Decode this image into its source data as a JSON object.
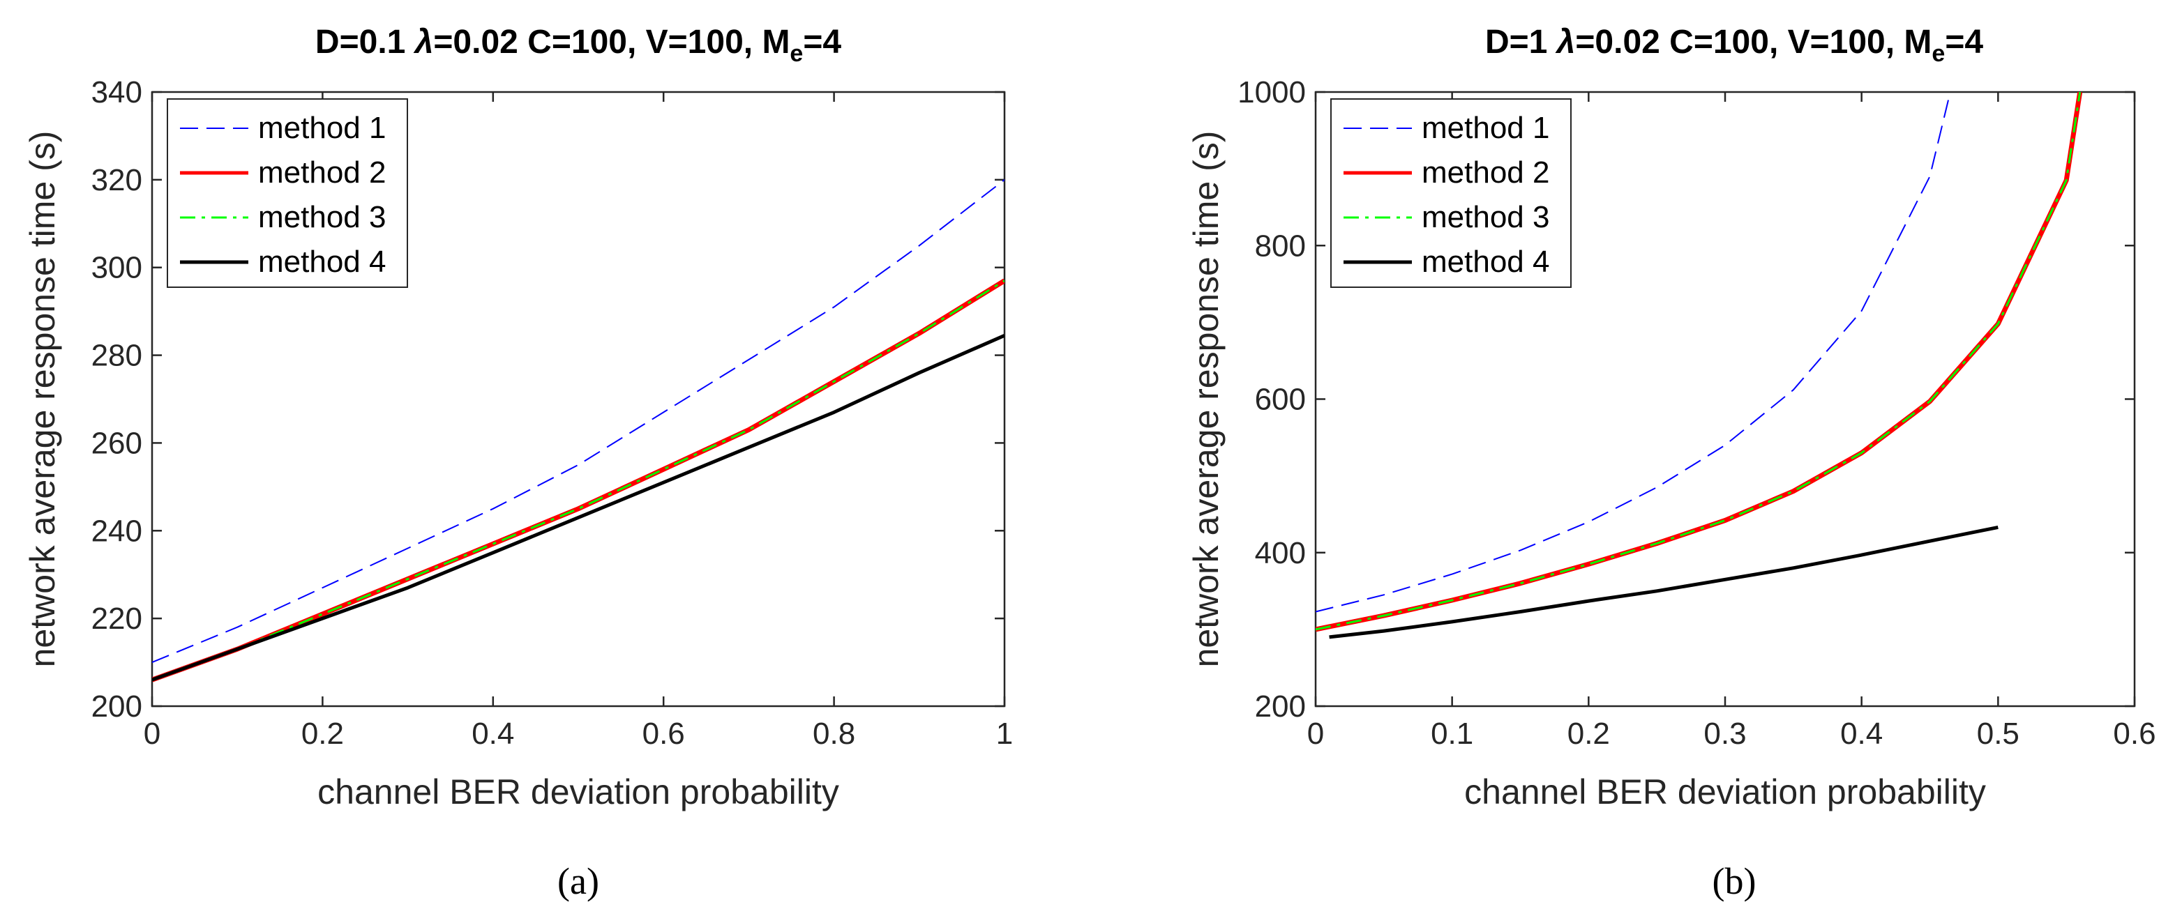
{
  "chart_data": [
    {
      "type": "line",
      "panel_label": "(a)",
      "title": {
        "p1": "D=0.1 ",
        "lambda": "λ",
        "p2": "=0.02 C=100, V=100, M",
        "sub": "e",
        "p3": "=4"
      },
      "xlabel": "channel BER deviation probability",
      "ylabel": "network average response time (s)",
      "xlim": [
        0,
        1
      ],
      "ylim": [
        200,
        340
      ],
      "xticks": [
        0,
        0.2,
        0.4,
        0.6,
        0.8,
        1
      ],
      "xtick_labels": [
        "0",
        "0.2",
        "0.4",
        "0.6",
        "0.8",
        "1"
      ],
      "yticks": [
        200,
        220,
        240,
        260,
        280,
        300,
        320,
        340
      ],
      "ytick_labels": [
        "200",
        "220",
        "240",
        "260",
        "280",
        "300",
        "320",
        "340"
      ],
      "legend": [
        "method 1",
        "method 2",
        "method 3",
        "method 4"
      ],
      "legend_position": "top-left",
      "series": [
        {
          "name": "method 1",
          "color": "#0000ff",
          "style": "dashed",
          "x": [
            0,
            0.1,
            0.2,
            0.3,
            0.4,
            0.5,
            0.6,
            0.7,
            0.8,
            0.9,
            1
          ],
          "y": [
            210,
            218,
            227,
            236,
            245,
            255,
            267,
            279,
            291,
            305,
            320
          ]
        },
        {
          "name": "method 2",
          "color": "#ff0000",
          "style": "solid",
          "x": [
            0,
            0.1,
            0.2,
            0.3,
            0.4,
            0.5,
            0.6,
            0.7,
            0.8,
            0.9,
            1
          ],
          "y": [
            206,
            213,
            221,
            229,
            237,
            245,
            254,
            263,
            274,
            285,
            297
          ]
        },
        {
          "name": "method 3",
          "color": "#00ff00",
          "style": "dashdot",
          "x": [
            0,
            0.1,
            0.2,
            0.3,
            0.4,
            0.5,
            0.6,
            0.7,
            0.8,
            0.9,
            1
          ],
          "y": [
            206,
            213,
            221,
            229,
            237,
            245,
            254,
            263,
            274,
            285,
            297
          ]
        },
        {
          "name": "method 4",
          "color": "#000000",
          "style": "solid",
          "x": [
            0,
            0.1,
            0.2,
            0.3,
            0.4,
            0.5,
            0.6,
            0.7,
            0.8,
            0.9,
            1
          ],
          "y": [
            206,
            213,
            220,
            227,
            235,
            243,
            251,
            259,
            267,
            276,
            284.5
          ]
        }
      ]
    },
    {
      "type": "line",
      "panel_label": "(b)",
      "title": {
        "p1": "D=1 ",
        "lambda": "λ",
        "p2": "=0.02 C=100, V=100, M",
        "sub": "e",
        "p3": "=4"
      },
      "xlabel": "channel BER deviation probability",
      "ylabel": "network average response time (s)",
      "xlim": [
        0,
        0.6
      ],
      "ylim": [
        200,
        1000
      ],
      "xticks": [
        0,
        0.1,
        0.2,
        0.3,
        0.4,
        0.5,
        0.6
      ],
      "xtick_labels": [
        "0",
        "0.1",
        "0.2",
        "0.3",
        "0.4",
        "0.5",
        "0.6"
      ],
      "yticks": [
        200,
        400,
        600,
        800,
        1000
      ],
      "ytick_labels": [
        "200",
        "400",
        "600",
        "800",
        "1000"
      ],
      "legend": [
        "method 1",
        "method 2",
        "method 3",
        "method 4"
      ],
      "legend_position": "top-left",
      "series": [
        {
          "name": "method 1",
          "color": "#0000ff",
          "style": "dashed",
          "x": [
            0,
            0.05,
            0.1,
            0.15,
            0.2,
            0.25,
            0.3,
            0.35,
            0.4,
            0.45,
            0.465
          ],
          "y": [
            323,
            345,
            372,
            403,
            440,
            485,
            540,
            612,
            715,
            890,
            1000
          ]
        },
        {
          "name": "method 2",
          "color": "#ff0000",
          "style": "solid",
          "x": [
            0,
            0.05,
            0.1,
            0.15,
            0.2,
            0.25,
            0.3,
            0.35,
            0.4,
            0.45,
            0.5,
            0.55,
            0.56
          ],
          "y": [
            300,
            318,
            338,
            360,
            385,
            412,
            442,
            480,
            530,
            597,
            698,
            885,
            1000
          ]
        },
        {
          "name": "method 3",
          "color": "#00ff00",
          "style": "dashdot",
          "x": [
            0,
            0.05,
            0.1,
            0.15,
            0.2,
            0.25,
            0.3,
            0.35,
            0.4,
            0.45,
            0.5,
            0.55,
            0.56
          ],
          "y": [
            300,
            318,
            338,
            360,
            385,
            412,
            442,
            480,
            530,
            597,
            698,
            885,
            1000
          ]
        },
        {
          "name": "method 4",
          "color": "#000000",
          "style": "solid",
          "x": [
            0.01,
            0.05,
            0.1,
            0.15,
            0.2,
            0.25,
            0.3,
            0.35,
            0.4,
            0.45,
            0.5
          ],
          "y": [
            290,
            298,
            310,
            323,
            337,
            350,
            365,
            380,
            397,
            415,
            433
          ]
        }
      ]
    }
  ]
}
